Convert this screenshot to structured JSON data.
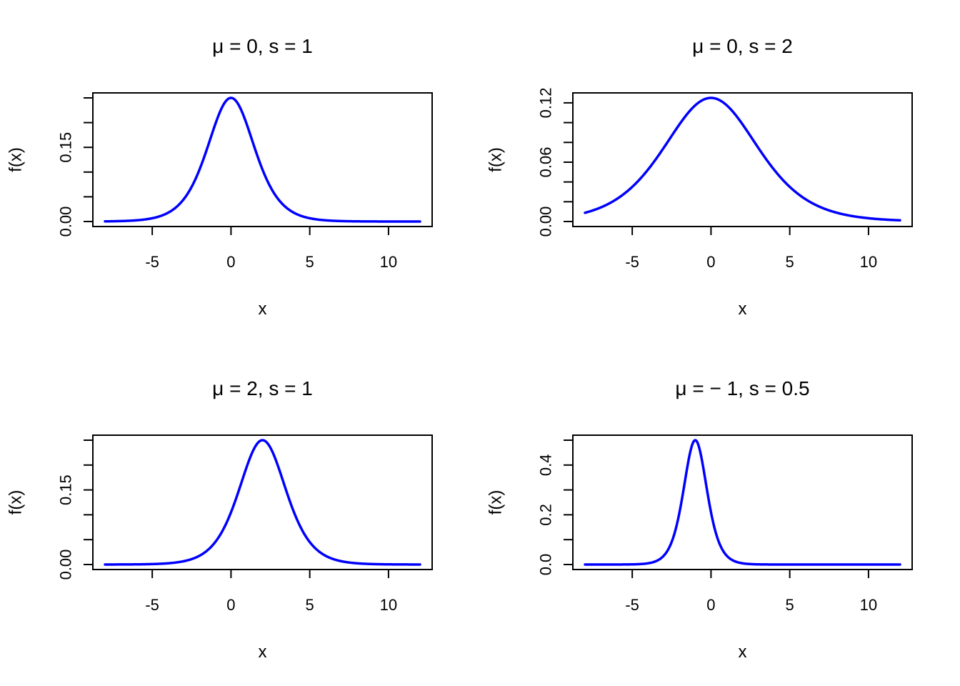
{
  "curve_color": "#0000ff",
  "chart_data": [
    {
      "type": "line",
      "title": "μ = 0,  s = 1",
      "xlabel": "x",
      "ylabel": "f(x)",
      "location": 0,
      "scale": 1,
      "xlim": [
        -8,
        12
      ],
      "ylim": [
        0,
        0.25
      ],
      "xticks": [
        -5,
        0,
        5,
        10
      ],
      "xtick_labels": [
        "-5",
        "0",
        "5",
        "10"
      ],
      "yticks": [
        0,
        0.05,
        0.1,
        0.15,
        0.2,
        0.25
      ],
      "ytick_labels": [
        "0.00",
        "",
        "",
        "0.15",
        "",
        ""
      ],
      "series": [
        {
          "x": [
            -8,
            -7,
            -6,
            -5,
            -4,
            -3,
            -2,
            -1,
            0,
            1,
            2,
            3,
            4,
            5,
            6,
            7,
            8,
            9,
            10,
            11,
            12
          ],
          "y": [
            0.000335,
            0.000911,
            0.002467,
            0.006648,
            0.017663,
            0.045177,
            0.104994,
            0.196612,
            0.25,
            0.196612,
            0.104994,
            0.045177,
            0.017663,
            0.006648,
            0.002467,
            0.000911,
            0.000335,
            0.000123,
            4.5e-05,
            1.7e-05,
            6e-06
          ]
        }
      ]
    },
    {
      "type": "line",
      "title": "μ = 0,  s = 2",
      "xlabel": "x",
      "ylabel": "f(x)",
      "location": 0,
      "scale": 2,
      "xlim": [
        -8,
        12
      ],
      "ylim": [
        0,
        0.125
      ],
      "xticks": [
        -5,
        0,
        5,
        10
      ],
      "xtick_labels": [
        "-5",
        "0",
        "5",
        "10"
      ],
      "yticks": [
        0,
        0.02,
        0.04,
        0.06,
        0.08,
        0.1,
        0.12
      ],
      "ytick_labels": [
        "0.00",
        "",
        "",
        "0.06",
        "",
        "",
        "0.12"
      ],
      "series": [
        {
          "x": [
            -8,
            -7,
            -6,
            -5,
            -4,
            -3,
            -2,
            -1,
            0,
            1,
            2,
            3,
            4,
            5,
            6,
            7,
            8,
            9,
            10,
            11,
            12
          ],
          "y": [
            0.008831,
            0.013996,
            0.022588,
            0.035226,
            0.052497,
            0.07382,
            0.098306,
            0.117502,
            0.125,
            0.117502,
            0.098306,
            0.07382,
            0.052497,
            0.035226,
            0.022588,
            0.013996,
            0.008831,
            0.005412,
            0.003324,
            0.002024,
            0.001233
          ]
        }
      ]
    },
    {
      "type": "line",
      "title": "μ = 2,  s = 1",
      "xlabel": "x",
      "ylabel": "f(x)",
      "location": 2,
      "scale": 1,
      "xlim": [
        -8,
        12
      ],
      "ylim": [
        0,
        0.25
      ],
      "xticks": [
        -5,
        0,
        5,
        10
      ],
      "xtick_labels": [
        "-5",
        "0",
        "5",
        "10"
      ],
      "yticks": [
        0,
        0.05,
        0.1,
        0.15,
        0.2,
        0.25
      ],
      "ytick_labels": [
        "0.00",
        "",
        "",
        "0.15",
        "",
        ""
      ],
      "series": [
        {
          "x": [
            -8,
            -7,
            -6,
            -5,
            -4,
            -3,
            -2,
            -1,
            0,
            1,
            2,
            3,
            4,
            5,
            6,
            7,
            8,
            9,
            10,
            11,
            12
          ],
          "y": [
            4.5e-05,
            0.000123,
            0.000335,
            0.000911,
            0.002467,
            0.006648,
            0.017663,
            0.045177,
            0.104994,
            0.196612,
            0.25,
            0.196612,
            0.104994,
            0.045177,
            0.017663,
            0.006648,
            0.002467,
            0.000911,
            0.000335,
            0.000123,
            4.5e-05
          ]
        }
      ]
    },
    {
      "type": "line",
      "title": "μ = − 1,  s = 0.5",
      "xlabel": "x",
      "ylabel": "f(x)",
      "location": -1,
      "scale": 0.5,
      "xlim": [
        -8,
        12
      ],
      "ylim": [
        0,
        0.5
      ],
      "xticks": [
        -5,
        0,
        5,
        10
      ],
      "xtick_labels": [
        "-5",
        "0",
        "5",
        "10"
      ],
      "yticks": [
        0,
        0.1,
        0.2,
        0.3,
        0.4,
        0.5
      ],
      "ytick_labels": [
        "0.0",
        "",
        "0.2",
        "",
        "0.4",
        ""
      ],
      "series": [
        {
          "x": [
            -8,
            -6,
            -4,
            -3,
            -2,
            -1.5,
            -1,
            -0.5,
            0,
            1,
            2,
            4,
            6,
            8,
            10,
            12
          ],
          "y": [
            0.0,
            9.1e-05,
            0.004933,
            0.035325,
            0.209987,
            0.393224,
            0.5,
            0.393224,
            0.209987,
            0.035325,
            0.004933,
            9.1e-05,
            0.0,
            0.0,
            0.0,
            0.0
          ]
        }
      ]
    }
  ]
}
